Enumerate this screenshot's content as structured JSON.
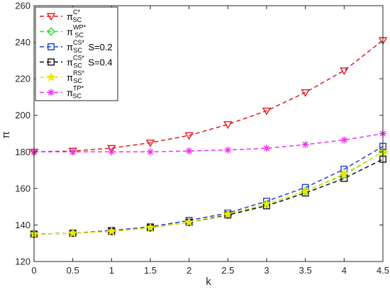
{
  "chart_data": {
    "type": "line",
    "title": "",
    "xlabel": "k",
    "ylabel": "π",
    "x": [
      0,
      0.5,
      1,
      1.5,
      2,
      2.5,
      3,
      3.5,
      4,
      4.5
    ],
    "xlim": [
      0,
      4.5
    ],
    "ylim": [
      120,
      260
    ],
    "xticks": [
      "0",
      "0.5",
      "1",
      "1.5",
      "2",
      "2.5",
      "3",
      "3.5",
      "4",
      "4.5"
    ],
    "yticks": [
      "120",
      "140",
      "160",
      "180",
      "200",
      "220",
      "240",
      "260"
    ],
    "grid": false,
    "legend_position": "top-left",
    "series": [
      {
        "name": "π_SC^{C*}",
        "label_main": "π",
        "label_sub": "SC",
        "label_sup": "C*",
        "label_extra": "",
        "color": "#e41a1c",
        "marker": "triangle-down",
        "values": [
          180,
          180.5,
          182,
          185,
          189,
          195,
          202.5,
          212.5,
          224.5,
          241
        ]
      },
      {
        "name": "π_SC^{WP*}",
        "label_main": "π",
        "label_sub": "SC",
        "label_sup": "WP*",
        "label_extra": "",
        "color": "#22dd22",
        "marker": "diamond",
        "values": [
          135,
          135.5,
          136.5,
          138.5,
          141.5,
          145.5,
          151.5,
          158.5,
          167.5,
          180
        ]
      },
      {
        "name": "π_SC^{CS*} S=0.2",
        "label_main": "π",
        "label_sub": "SC",
        "label_sup": "CS*",
        "label_extra": "S=0.2",
        "color": "#1f3fd6",
        "marker": "square",
        "values": [
          135,
          135.5,
          137,
          139,
          142.5,
          146.5,
          153,
          160.5,
          170.5,
          183
        ]
      },
      {
        "name": "π_SC^{CS*} S=0.4",
        "label_main": "π",
        "label_sub": "SC",
        "label_sup": "CS*",
        "label_extra": "S=0.4",
        "color": "#111111",
        "marker": "square",
        "values": [
          135,
          135.5,
          136.5,
          138.5,
          141.5,
          145.5,
          150.5,
          157.5,
          165.5,
          176
        ]
      },
      {
        "name": "π_SC^{RS*}",
        "label_main": "π",
        "label_sub": "SC",
        "label_sup": "RS*",
        "label_extra": "",
        "color": "#f2e600",
        "marker": "star",
        "values": [
          135,
          135.5,
          136.5,
          138.5,
          141.5,
          146,
          151.5,
          158.5,
          168,
          180
        ]
      },
      {
        "name": "π_SC^{TP*}",
        "label_main": "π",
        "label_sub": "SC",
        "label_sup": "TP*",
        "label_extra": "",
        "color": "#ee33ee",
        "marker": "asterisk",
        "values": [
          180,
          180,
          180,
          180,
          180.5,
          181,
          182,
          184,
          186.5,
          190
        ]
      }
    ]
  }
}
